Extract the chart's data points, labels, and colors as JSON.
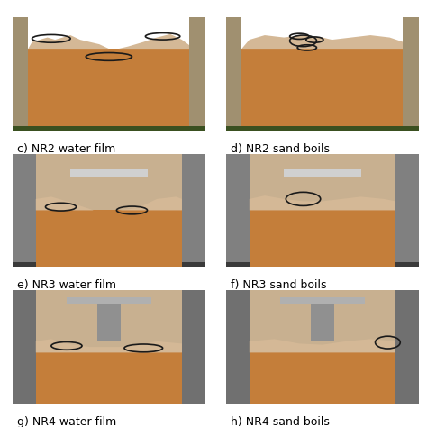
{
  "labels": [
    [
      "c) NR2 water film",
      "d) NR2 sand boils"
    ],
    [
      "e) NR3 water film",
      "f) NR3 sand boils"
    ],
    [
      "g) NR4 water film",
      "h) NR4 sand boils"
    ]
  ],
  "bg_color": "#ffffff",
  "label_fontsize": 9,
  "fig_width": 4.74,
  "fig_height": 4.74,
  "dpi": 100,
  "sand_color": "#c47e3a",
  "water_color": "#d4b896",
  "ellipse_color": "#1a1a1a"
}
